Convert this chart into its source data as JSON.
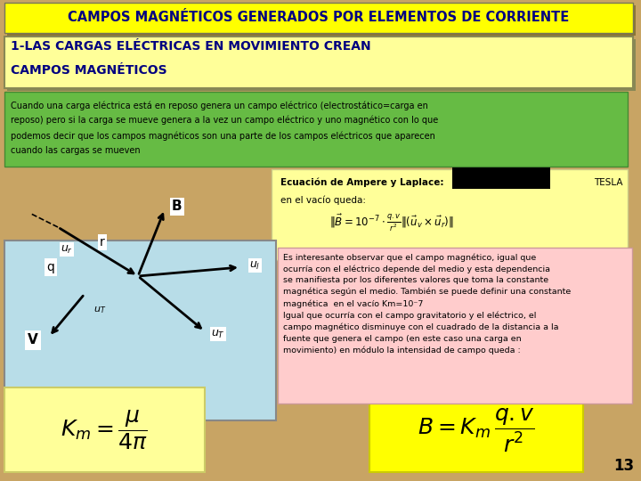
{
  "title": "CAMPOS MAGNÉTICOS GENERADOS POR ELEMENTOS DE CORRIENTE",
  "title_bg": "#FFFF00",
  "title_color": "#000080",
  "title_shadow": "#8B7536",
  "bg_color": "#C8A464",
  "section1_bg": "#FFFF99",
  "section1_color": "#000080",
  "green_box_bg": "#66BB44",
  "green_box_color": "#000000",
  "green_box_text_line1": "Cuando una carga eléctrica está en reposo genera un campo eléctrico (electrostático=carga en",
  "green_box_text_line2": "reposo) pero si la carga se mueve genera a la vez un campo eléctrico y uno magnético con lo que",
  "green_box_text_line3": "podemos decir que los campos magnéticos son una parte de los campos eléctricos que aparecen",
  "green_box_text_line4": "cuando las cargas se mueven",
  "yellow_bg": "#FFFF99",
  "equation_label": "Ecuación de Ampere y Laplace:",
  "tesla_label": "TESLA",
  "vacuum_label": "en el vacío queda:",
  "blue_box_bg": "#B8DDE8",
  "pink_box_bg": "#FFCCCC",
  "pink_box_color": "#000000",
  "page_num": "13"
}
